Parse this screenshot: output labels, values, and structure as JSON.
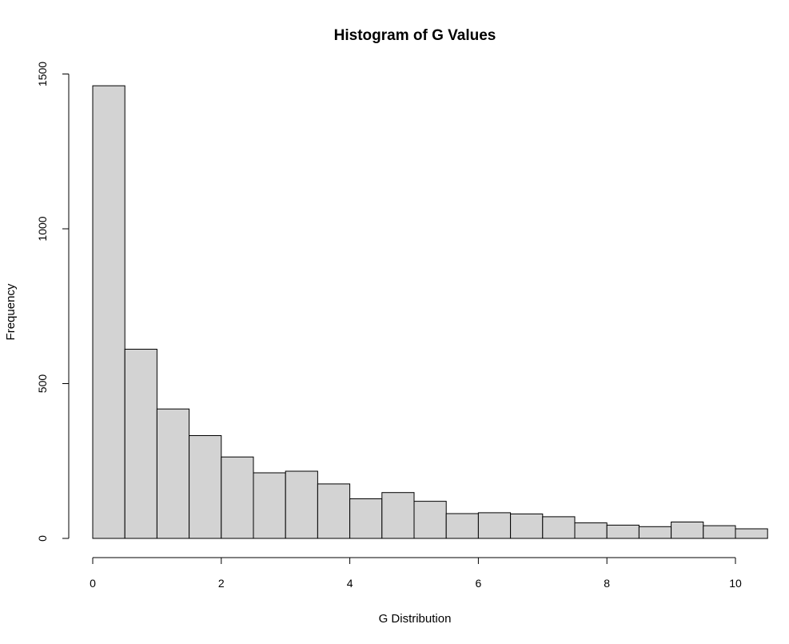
{
  "chart_data": {
    "type": "bar",
    "title": "Histogram of G Values",
    "xlabel": "G Distribution",
    "ylabel": "Frequency",
    "bin_width": 0.5,
    "bins_start": [
      0,
      0.5,
      1,
      1.5,
      2,
      2.5,
      3,
      3.5,
      4,
      4.5,
      5,
      5.5,
      6,
      6.5,
      7,
      7.5,
      8,
      8.5,
      9,
      9.5,
      10
    ],
    "values": [
      1462,
      611,
      418,
      332,
      263,
      212,
      217,
      176,
      128,
      148,
      120,
      80,
      83,
      79,
      70,
      50,
      43,
      38,
      53,
      41,
      31
    ],
    "xlim": [
      0,
      10.5
    ],
    "ylim": [
      0,
      1500
    ],
    "x_ticks": [
      0,
      2,
      4,
      6,
      8,
      10
    ],
    "y_ticks": [
      0,
      500,
      1000,
      1500
    ],
    "x_tick_labels": [
      "0",
      "2",
      "4",
      "6",
      "8",
      "10"
    ],
    "y_tick_labels": [
      "0",
      "500",
      "1000",
      "1500"
    ],
    "bar_color": "#d3d3d3",
    "edge_color": "#000000",
    "grid": false,
    "legend": "none"
  }
}
